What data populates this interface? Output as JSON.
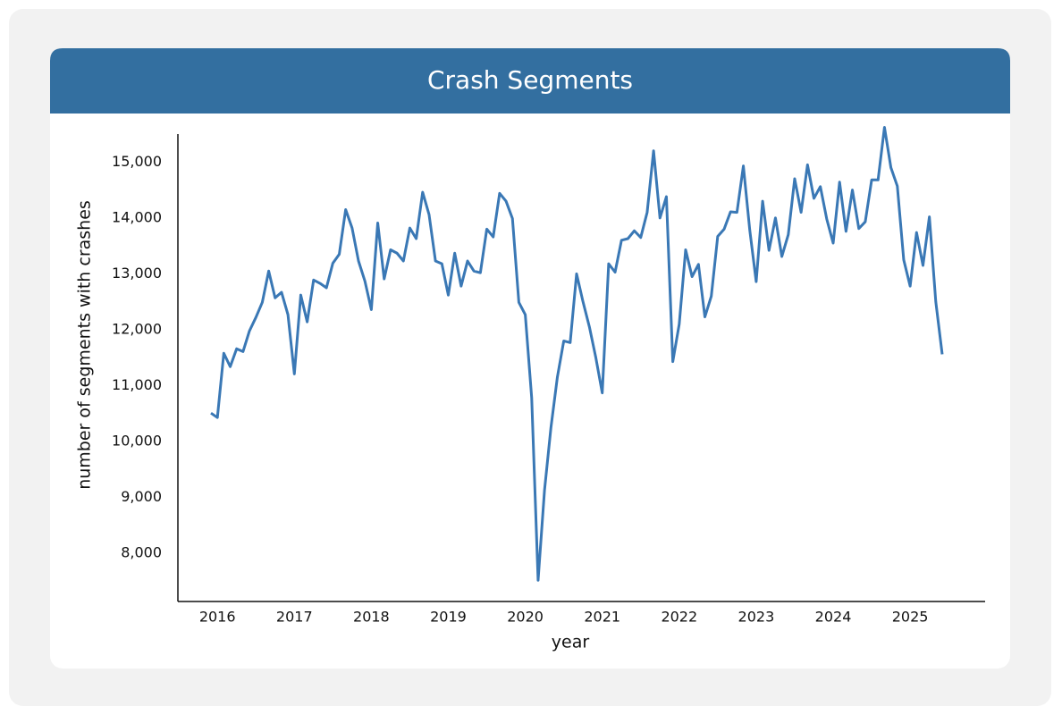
{
  "chart_data": {
    "type": "line",
    "title": "Crash Segments",
    "x_label": "year",
    "y_label": "number of segments with crashes",
    "categories": [
      null,
      "2016",
      null,
      null,
      null,
      null,
      null,
      null,
      null,
      null,
      null,
      null,
      null,
      "2017",
      null,
      null,
      null,
      null,
      null,
      null,
      null,
      null,
      null,
      null,
      null,
      "2018",
      null,
      null,
      null,
      null,
      null,
      null,
      null,
      null,
      null,
      null,
      null,
      "2019",
      null,
      null,
      null,
      null,
      null,
      null,
      null,
      null,
      null,
      null,
      null,
      "2020",
      null,
      null,
      null,
      null,
      null,
      null,
      null,
      null,
      null,
      null,
      null,
      "2021",
      null,
      null,
      null,
      null,
      null,
      null,
      null,
      null,
      null,
      null,
      null,
      "2022",
      null,
      null,
      null,
      null,
      null,
      null,
      null,
      null,
      null,
      null,
      null,
      "2023",
      null,
      null,
      null,
      null,
      null,
      null,
      null,
      null,
      null,
      null,
      null,
      "2024",
      null,
      null,
      null,
      null,
      null,
      null,
      null,
      null,
      null,
      null,
      null,
      "2025",
      null,
      null,
      null,
      null,
      null
    ],
    "series": [
      {
        "name": "number of segments with crashes",
        "color": "#3a78b5",
        "values": [
          10510,
          10430,
          11580,
          11340,
          11660,
          11610,
          11980,
          12220,
          12490,
          13050,
          12570,
          12670,
          12270,
          11210,
          12620,
          12140,
          12890,
          12830,
          12750,
          13190,
          13350,
          14150,
          13820,
          13230,
          12870,
          12360,
          13910,
          12910,
          13430,
          13370,
          13230,
          13820,
          13630,
          14460,
          14060,
          13230,
          13180,
          12620,
          13370,
          12780,
          13230,
          13050,
          13020,
          13800,
          13660,
          14440,
          14300,
          13990,
          12490,
          12270,
          10780,
          7520,
          9130,
          10250,
          11150,
          11800,
          11770,
          13000,
          12500,
          12050,
          11500,
          10870,
          13180,
          13030,
          13600,
          13630,
          13770,
          13650,
          14100,
          15200,
          14000,
          14380,
          11430,
          12100,
          13430,
          12950,
          13170,
          12230,
          12600,
          13670,
          13800,
          14110,
          14100,
          14930,
          13780,
          12860,
          14300,
          13420,
          14000,
          13310,
          13700,
          14700,
          14100,
          14950,
          14350,
          14560,
          13980,
          13550,
          14640,
          13760,
          14500,
          13810,
          13930,
          14680,
          14680,
          15620,
          14900,
          14570,
          13250,
          12780,
          13740,
          13150,
          14020,
          12500,
          11560
        ]
      }
    ],
    "ylim": [
      7140,
      15500
    ],
    "yticks": [
      {
        "value": 8000,
        "label": "8,000"
      },
      {
        "value": 9000,
        "label": "9,000"
      },
      {
        "value": 10000,
        "label": "10,000"
      },
      {
        "value": 11000,
        "label": "11,000"
      },
      {
        "value": 12000,
        "label": "12,000"
      },
      {
        "value": 13000,
        "label": "13,000"
      },
      {
        "value": 14000,
        "label": "14,000"
      },
      {
        "value": 15000,
        "label": "15,000"
      }
    ],
    "grid": false
  }
}
